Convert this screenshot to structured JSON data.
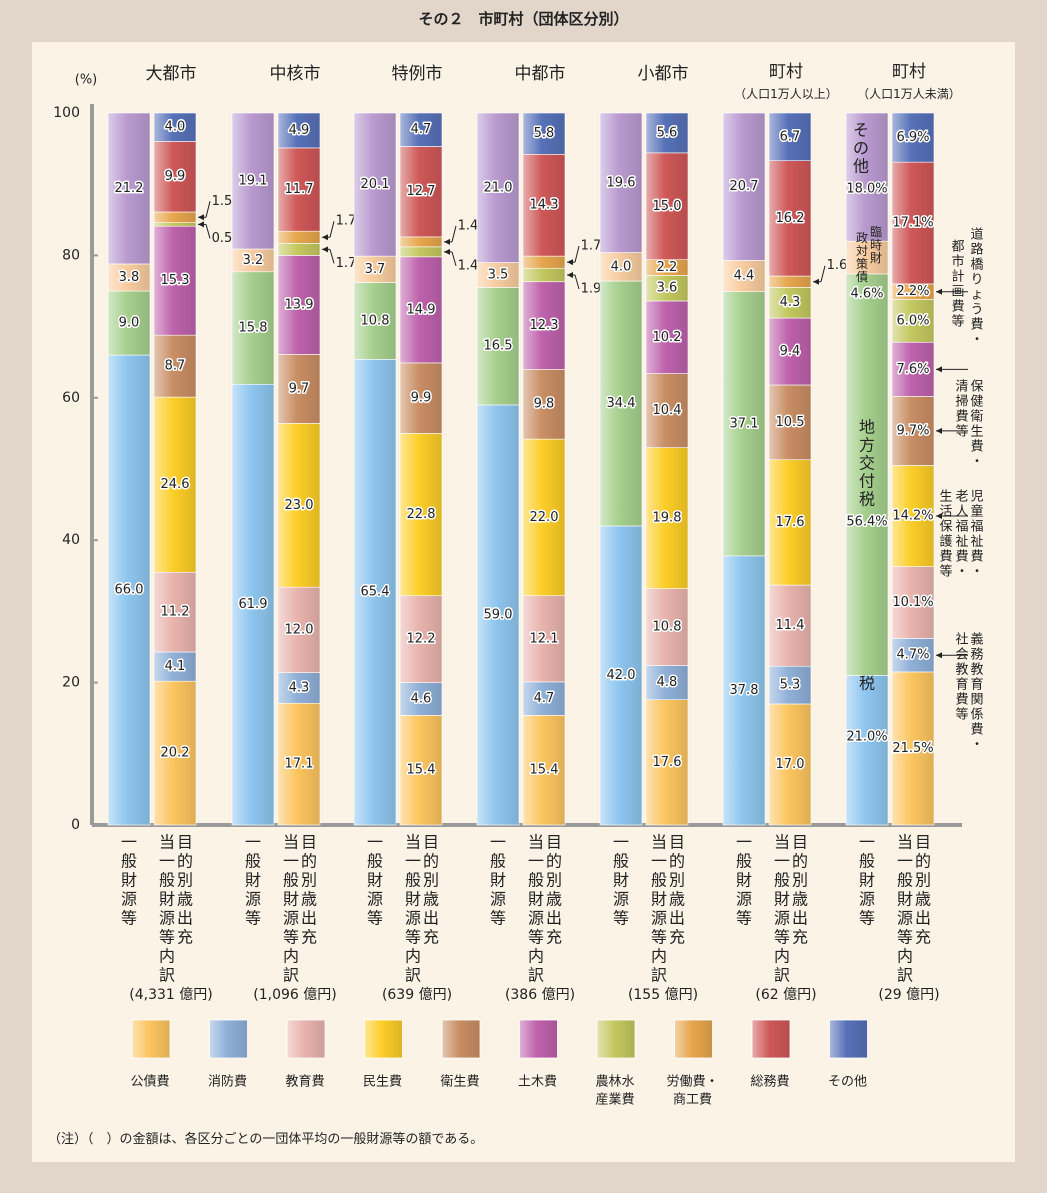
{
  "title": "その２　市町村（団体区分別）",
  "note": "（注）（　）の金額は、各区分ごとの一団体平均の一般財源等の額である。",
  "colors": {
    "公債費": "#fcc55f",
    "消防費": "#8fb0d8",
    "教育費": "#e9b3ad",
    "民生費": "#fcce28",
    "衛生費": "#c98e64",
    "土木費": "#be62ac",
    "農林水産業費": "#c3c860",
    "労働費・商工費": "#e7a64d",
    "総務費": "#cf5858",
    "その他": "#5771b8",
    "地方税": "#8ec6ef",
    "地方交付税": "#a6d08e",
    "臨時財政対策債": "#f8cc9f",
    "other_rev": "#b99ad0"
  },
  "chart_data": {
    "type": "bar",
    "stacked": true,
    "ylabel": "(%)",
    "ylim": [
      0,
      100
    ],
    "yticks": [
      "0",
      "20",
      "40",
      "60",
      "80",
      "100"
    ],
    "bar_labels": {
      "left": "一般財源等",
      "right": "目的別歳出充当一般財源等内訳"
    },
    "legend": [
      "公債費",
      "消防費",
      "教育費",
      "民生費",
      "衛生費",
      "土木費",
      "農林水産業費",
      "労働費・商工費",
      "総務費",
      "その他"
    ],
    "legend_display": [
      "公債費",
      "消防費",
      "教育費",
      "民生費",
      "衛生費",
      "土木費",
      "農林水\n産業費",
      "労働費・\n商工費",
      "総務費",
      "その他"
    ],
    "groups": [
      {
        "name": "大都市",
        "subname": "",
        "amount": "(4,331 億円)",
        "revenue": [
          {
            "cat": "地方税",
            "value": 66.0,
            "label": "66.0"
          },
          {
            "cat": "地方交付税",
            "value": 9.0,
            "label": "9.0"
          },
          {
            "cat": "臨時財政対策債",
            "value": 3.8,
            "label": "3.8"
          },
          {
            "cat": "other_rev",
            "value": 21.2,
            "label": "21.2"
          }
        ],
        "expenditure": [
          {
            "cat": "公債費",
            "value": 20.2,
            "label": "20.2"
          },
          {
            "cat": "消防費",
            "value": 4.1,
            "label": "4.1"
          },
          {
            "cat": "教育費",
            "value": 11.2,
            "label": "11.2"
          },
          {
            "cat": "民生費",
            "value": 24.6,
            "label": "24.6"
          },
          {
            "cat": "衛生費",
            "value": 8.7,
            "label": "8.7"
          },
          {
            "cat": "土木費",
            "value": 15.3,
            "label": "15.3"
          },
          {
            "cat": "農林水産業費",
            "value": 0.5,
            "label": "0.5"
          },
          {
            "cat": "労働費・商工費",
            "value": 1.5,
            "label": "1.5"
          },
          {
            "cat": "総務費",
            "value": 9.9,
            "label": "9.9"
          },
          {
            "cat": "その他",
            "value": 4.0,
            "label": "4.0"
          }
        ]
      },
      {
        "name": "中核市",
        "subname": "",
        "amount": "(1,096 億円)",
        "revenue": [
          {
            "cat": "地方税",
            "value": 61.9,
            "label": "61.9"
          },
          {
            "cat": "地方交付税",
            "value": 15.8,
            "label": "15.8"
          },
          {
            "cat": "臨時財政対策債",
            "value": 3.2,
            "label": "3.2"
          },
          {
            "cat": "other_rev",
            "value": 19.1,
            "label": "19.1"
          }
        ],
        "expenditure": [
          {
            "cat": "公債費",
            "value": 17.1,
            "label": "17.1"
          },
          {
            "cat": "消防費",
            "value": 4.3,
            "label": "4.3"
          },
          {
            "cat": "教育費",
            "value": 12.0,
            "label": "12.0"
          },
          {
            "cat": "民生費",
            "value": 23.0,
            "label": "23.0"
          },
          {
            "cat": "衛生費",
            "value": 9.7,
            "label": "9.7"
          },
          {
            "cat": "土木費",
            "value": 13.9,
            "label": "13.9"
          },
          {
            "cat": "農林水産業費",
            "value": 1.7,
            "label": "1.7"
          },
          {
            "cat": "労働費・商工費",
            "value": 1.7,
            "label": "1.7"
          },
          {
            "cat": "総務費",
            "value": 11.7,
            "label": "11.7"
          },
          {
            "cat": "その他",
            "value": 4.9,
            "label": "4.9"
          }
        ]
      },
      {
        "name": "特例市",
        "subname": "",
        "amount": "(639 億円)",
        "revenue": [
          {
            "cat": "地方税",
            "value": 65.4,
            "label": "65.4"
          },
          {
            "cat": "地方交付税",
            "value": 10.8,
            "label": "10.8"
          },
          {
            "cat": "臨時財政対策債",
            "value": 3.7,
            "label": "3.7"
          },
          {
            "cat": "other_rev",
            "value": 20.1,
            "label": "20.1"
          }
        ],
        "expenditure": [
          {
            "cat": "公債費",
            "value": 15.4,
            "label": "15.4"
          },
          {
            "cat": "消防費",
            "value": 4.6,
            "label": "4.6"
          },
          {
            "cat": "教育費",
            "value": 12.2,
            "label": "12.2"
          },
          {
            "cat": "民生費",
            "value": 22.8,
            "label": "22.8"
          },
          {
            "cat": "衛生費",
            "value": 9.9,
            "label": "9.9"
          },
          {
            "cat": "土木費",
            "value": 14.9,
            "label": "14.9"
          },
          {
            "cat": "農林水産業費",
            "value": 1.4,
            "label": "1.4"
          },
          {
            "cat": "労働費・商工費",
            "value": 1.4,
            "label": "1.4"
          },
          {
            "cat": "総務費",
            "value": 12.7,
            "label": "12.7"
          },
          {
            "cat": "その他",
            "value": 4.7,
            "label": "4.7"
          }
        ]
      },
      {
        "name": "中都市",
        "subname": "",
        "amount": "(386 億円)",
        "revenue": [
          {
            "cat": "地方税",
            "value": 59.0,
            "label": "59.0"
          },
          {
            "cat": "地方交付税",
            "value": 16.5,
            "label": "16.5"
          },
          {
            "cat": "臨時財政対策債",
            "value": 3.5,
            "label": "3.5"
          },
          {
            "cat": "other_rev",
            "value": 21.0,
            "label": "21.0"
          }
        ],
        "expenditure": [
          {
            "cat": "公債費",
            "value": 15.4,
            "label": "15.4"
          },
          {
            "cat": "消防費",
            "value": 4.7,
            "label": "4.7"
          },
          {
            "cat": "教育費",
            "value": 12.1,
            "label": "12.1"
          },
          {
            "cat": "民生費",
            "value": 22.0,
            "label": "22.0"
          },
          {
            "cat": "衛生費",
            "value": 9.8,
            "label": "9.8"
          },
          {
            "cat": "土木費",
            "value": 12.3,
            "label": "12.3"
          },
          {
            "cat": "農林水産業費",
            "value": 1.9,
            "label": "1.9"
          },
          {
            "cat": "労働費・商工費",
            "value": 1.7,
            "label": "1.7"
          },
          {
            "cat": "総務費",
            "value": 14.3,
            "label": "14.3"
          },
          {
            "cat": "その他",
            "value": 5.8,
            "label": "5.8"
          }
        ]
      },
      {
        "name": "小都市",
        "subname": "",
        "amount": "(155 億円)",
        "revenue": [
          {
            "cat": "地方税",
            "value": 42.0,
            "label": "42.0"
          },
          {
            "cat": "地方交付税",
            "value": 34.4,
            "label": "34.4"
          },
          {
            "cat": "臨時財政対策債",
            "value": 4.0,
            "label": "4.0"
          },
          {
            "cat": "other_rev",
            "value": 19.6,
            "label": "19.6"
          }
        ],
        "expenditure": [
          {
            "cat": "公債費",
            "value": 17.6,
            "label": "17.6"
          },
          {
            "cat": "消防費",
            "value": 4.8,
            "label": "4.8"
          },
          {
            "cat": "教育費",
            "value": 10.8,
            "label": "10.8"
          },
          {
            "cat": "民生費",
            "value": 19.8,
            "label": "19.8"
          },
          {
            "cat": "衛生費",
            "value": 10.4,
            "label": "10.4"
          },
          {
            "cat": "土木費",
            "value": 10.2,
            "label": "10.2"
          },
          {
            "cat": "農林水産業費",
            "value": 3.6,
            "label": "3.6"
          },
          {
            "cat": "労働費・商工費",
            "value": 2.2,
            "label": "2.2"
          },
          {
            "cat": "総務費",
            "value": 15.0,
            "label": "15.0"
          },
          {
            "cat": "その他",
            "value": 5.6,
            "label": "5.6"
          }
        ]
      },
      {
        "name": "町村",
        "subname": "（人口1万人以上）",
        "amount": "(62 億円)",
        "revenue": [
          {
            "cat": "地方税",
            "value": 37.8,
            "label": "37.8"
          },
          {
            "cat": "地方交付税",
            "value": 37.1,
            "label": "37.1"
          },
          {
            "cat": "臨時財政対策債",
            "value": 4.4,
            "label": "4.4"
          },
          {
            "cat": "other_rev",
            "value": 20.7,
            "label": "20.7"
          }
        ],
        "expenditure": [
          {
            "cat": "公債費",
            "value": 17.0,
            "label": "17.0"
          },
          {
            "cat": "消防費",
            "value": 5.3,
            "label": "5.3"
          },
          {
            "cat": "教育費",
            "value": 11.4,
            "label": "11.4"
          },
          {
            "cat": "民生費",
            "value": 17.6,
            "label": "17.6"
          },
          {
            "cat": "衛生費",
            "value": 10.5,
            "label": "10.5"
          },
          {
            "cat": "土木費",
            "value": 9.4,
            "label": "9.4"
          },
          {
            "cat": "農林水産業費",
            "value": 4.3,
            "label": "4.3"
          },
          {
            "cat": "労働費・商工費",
            "value": 1.6,
            "label": "1.6"
          },
          {
            "cat": "総務費",
            "value": 16.2,
            "label": "16.2"
          },
          {
            "cat": "その他",
            "value": 6.7,
            "label": "6.7"
          }
        ]
      },
      {
        "name": "町村",
        "subname": "（人口1万人未満）",
        "amount": "(29 億円)",
        "revenue": [
          {
            "cat": "地方税",
            "value": 21.0,
            "label": "21.0%",
            "text": "地方税"
          },
          {
            "cat": "地方交付税",
            "value": 56.4,
            "label": "56.4%",
            "text": "地方交付税"
          },
          {
            "cat": "臨時財政対策債",
            "value": 4.6,
            "label": "4.6%",
            "text": "臨時財政対策債"
          },
          {
            "cat": "other_rev",
            "value": 18.0,
            "label": "18.0%",
            "text": "その他"
          }
        ],
        "expenditure": [
          {
            "cat": "公債費",
            "value": 21.5,
            "label": "21.5%"
          },
          {
            "cat": "消防費",
            "value": 4.7,
            "label": "4.7%"
          },
          {
            "cat": "教育費",
            "value": 10.1,
            "label": "10.1%"
          },
          {
            "cat": "民生費",
            "value": 14.2,
            "label": "14.2%"
          },
          {
            "cat": "衛生費",
            "value": 9.7,
            "label": "9.7%"
          },
          {
            "cat": "土木費",
            "value": 7.6,
            "label": "7.6%"
          },
          {
            "cat": "農林水産業費",
            "value": 6.0,
            "label": "6.0%"
          },
          {
            "cat": "労働費・商工費",
            "value": 2.2,
            "label": "2.2%"
          },
          {
            "cat": "総務費",
            "value": 17.1,
            "label": "17.1%"
          },
          {
            "cat": "その他",
            "value": 6.9,
            "label": "6.9%"
          }
        ]
      }
    ],
    "callouts": [
      {
        "group": 6,
        "cat": "労働費・商工費",
        "text": "都市計画費等"
      },
      {
        "group": 6,
        "cat": "土木費",
        "text": "道路橋りょう費・"
      },
      {
        "group": 6,
        "cat": "衛生費",
        "text": "保健衛生費・清掃費等"
      },
      {
        "group": 6,
        "cat": "民生費",
        "text": "児童福祉費・老人福祉費・生活保護費等"
      },
      {
        "group": 6,
        "cat": "消防費",
        "text": "義務教育関係費・社会教育費等"
      }
    ]
  }
}
